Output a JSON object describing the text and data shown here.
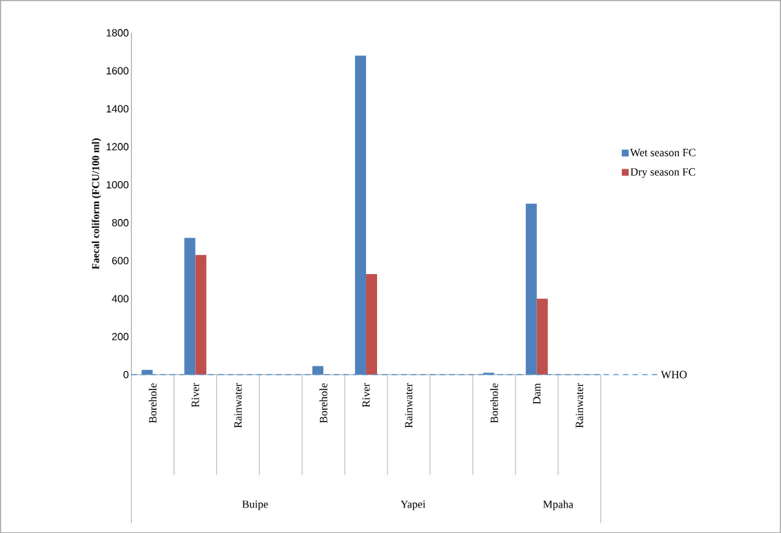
{
  "chart_data": {
    "type": "bar",
    "ylabel": "Faecal coliform (FCU/100 ml)",
    "categories": [
      "Borehole",
      "River",
      "Rainwater",
      null,
      "Borehole",
      "River",
      "Rainwater",
      null,
      "Borehole",
      "Dam",
      "Rainwater"
    ],
    "series": [
      {
        "name": "Wet season FC",
        "color": "#4f81bd",
        "values": [
          25,
          720,
          0,
          null,
          45,
          1680,
          0,
          null,
          10,
          900,
          0
        ]
      },
      {
        "name": "Dry season FC",
        "color": "#c0504d",
        "values": [
          0,
          630,
          0,
          null,
          0,
          530,
          0,
          null,
          0,
          400,
          0
        ]
      }
    ],
    "ylim": [
      0,
      1800
    ],
    "yticks": [
      0,
      200,
      400,
      600,
      800,
      1000,
      1200,
      1400,
      1600,
      1800
    ],
    "ref_lines": [
      {
        "axis": "y",
        "value": 0,
        "label": "WHO",
        "color": "#5b9bd5",
        "line_style": "dashed"
      }
    ],
    "annotations": [
      "Buipe",
      "Yapei",
      "Mpaha"
    ],
    "legend": "right"
  }
}
